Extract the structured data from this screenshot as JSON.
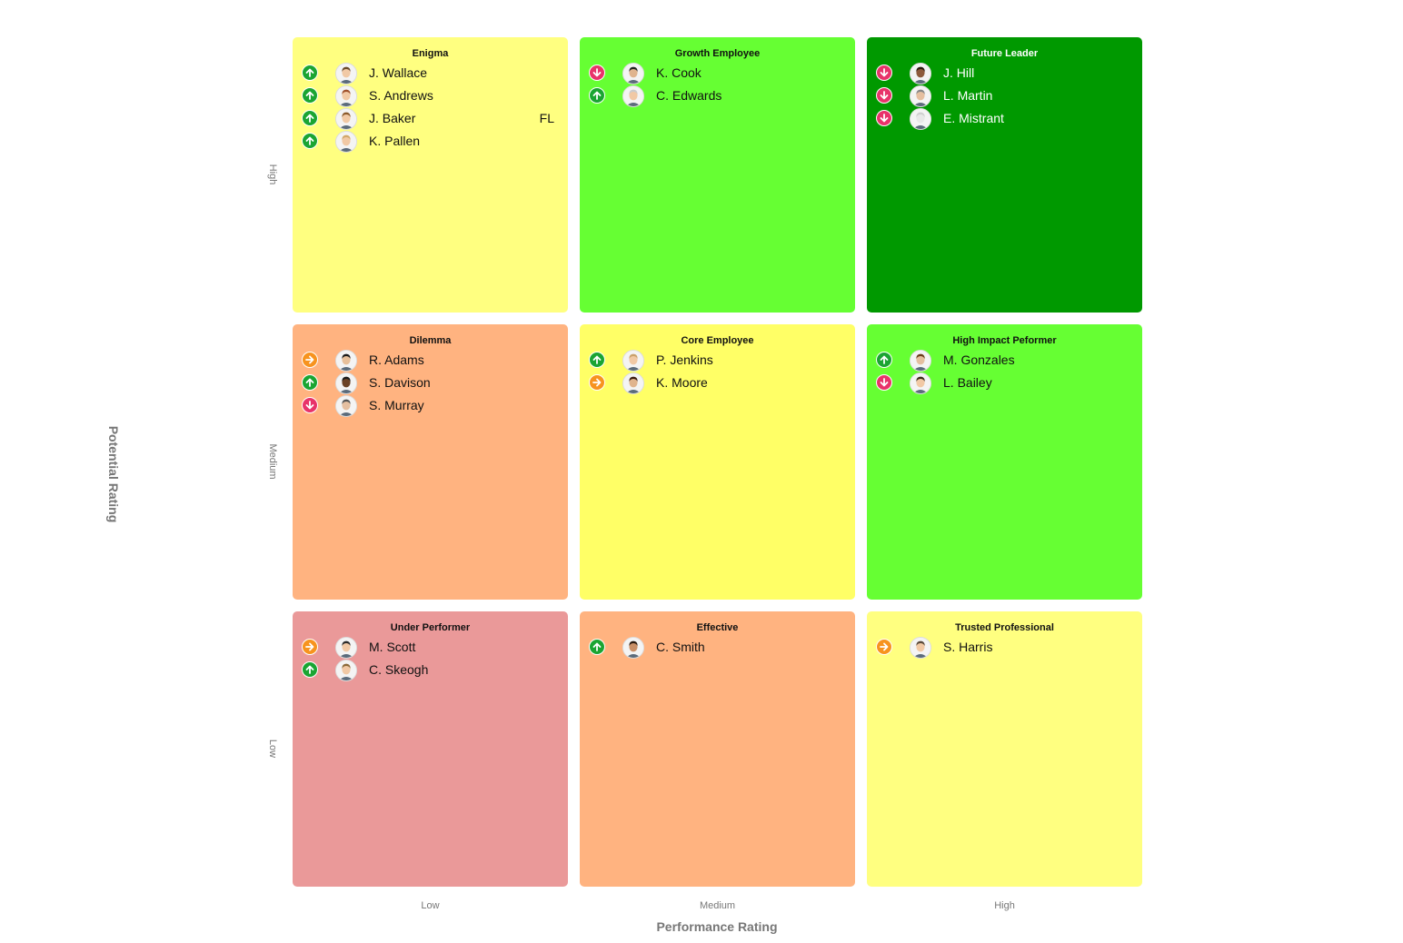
{
  "axes": {
    "y_title": "Potential Rating",
    "x_title": "Performance Rating",
    "row_labels": [
      "High",
      "Medium",
      "Low"
    ],
    "col_labels": [
      "Low",
      "Medium",
      "High"
    ]
  },
  "cells": [
    {
      "title": "Enigma",
      "color": "#ffff80",
      "people": [
        {
          "name": "J. Wallace",
          "trend": "up",
          "hair": "#6b4a2b",
          "skin": "#f1c9a5"
        },
        {
          "name": "S. Andrews",
          "trend": "up",
          "hair": "#a0522d",
          "skin": "#f1c9a5"
        },
        {
          "name": "J. Baker",
          "trend": "up",
          "tag": "FL",
          "hair": "#8b5a2b",
          "skin": "#f1c9a5"
        },
        {
          "name": "K. Pallen",
          "trend": "up",
          "hair": "#d2a86a",
          "skin": "#f1c9a5"
        }
      ]
    },
    {
      "title": "Growth Employee",
      "color": "#66ff33",
      "people": [
        {
          "name": "K. Cook",
          "trend": "down",
          "hair": "#222222",
          "skin": "#e0b48e"
        },
        {
          "name": "C. Edwards",
          "trend": "up",
          "hair": "#cccccc",
          "skin": "#f1c9a5"
        }
      ]
    },
    {
      "title": "Future Leader",
      "color": "#009900",
      "dark": true,
      "people": [
        {
          "name": "J. Hill",
          "trend": "down",
          "hair": "#2a1a10",
          "skin": "#8d5a3b"
        },
        {
          "name": "L. Martin",
          "trend": "down",
          "hair": "#888888",
          "skin": "#e5bfa0"
        },
        {
          "name": "E. Mistrant",
          "trend": "down",
          "hair": "#d0d0d0",
          "skin": "#e8e8e8"
        }
      ]
    },
    {
      "title": "Dilemma",
      "color": "#ffb380",
      "people": [
        {
          "name": "R. Adams",
          "trend": "right",
          "hair": "#1a1a1a",
          "skin": "#e8c09a"
        },
        {
          "name": "S. Davison",
          "trend": "up",
          "hair": "#1a1a1a",
          "skin": "#6b4226"
        },
        {
          "name": "S. Murray",
          "trend": "down",
          "hair": "#555555",
          "skin": "#e5bfa0"
        }
      ]
    },
    {
      "title": "Core Employee",
      "color": "#ffff66",
      "people": [
        {
          "name": "P. Jenkins",
          "trend": "up",
          "hair": "#c9a06a",
          "skin": "#f1c9a5"
        },
        {
          "name": "K. Moore",
          "trend": "right",
          "hair": "#3a1a10",
          "skin": "#e0b48e"
        }
      ]
    },
    {
      "title": "High Impact Peformer",
      "color": "#66ff33",
      "people": [
        {
          "name": "M. Gonzales",
          "trend": "up",
          "hair": "#6b3a1a",
          "skin": "#e5bfa0"
        },
        {
          "name": "L. Bailey",
          "trend": "down",
          "hair": "#3a2a1a",
          "skin": "#f1c9a5"
        }
      ]
    },
    {
      "title": "Under Performer",
      "color": "#ea9999",
      "people": [
        {
          "name": "M. Scott",
          "trend": "right",
          "hair": "#2a2a2a",
          "skin": "#f1c9a5"
        },
        {
          "name": "C. Skeogh",
          "trend": "up",
          "hair": "#8b6a3a",
          "skin": "#f1c9a5"
        }
      ]
    },
    {
      "title": "Effective",
      "color": "#ffb380",
      "people": [
        {
          "name": "C. Smith",
          "trend": "up",
          "hair": "#2a1a10",
          "skin": "#c98f66"
        }
      ]
    },
    {
      "title": "Trusted Professional",
      "color": "#ffff80",
      "people": [
        {
          "name": "S. Harris",
          "trend": "right",
          "hair": "#5a4a3a",
          "skin": "#f1c9a5"
        }
      ]
    }
  ]
}
